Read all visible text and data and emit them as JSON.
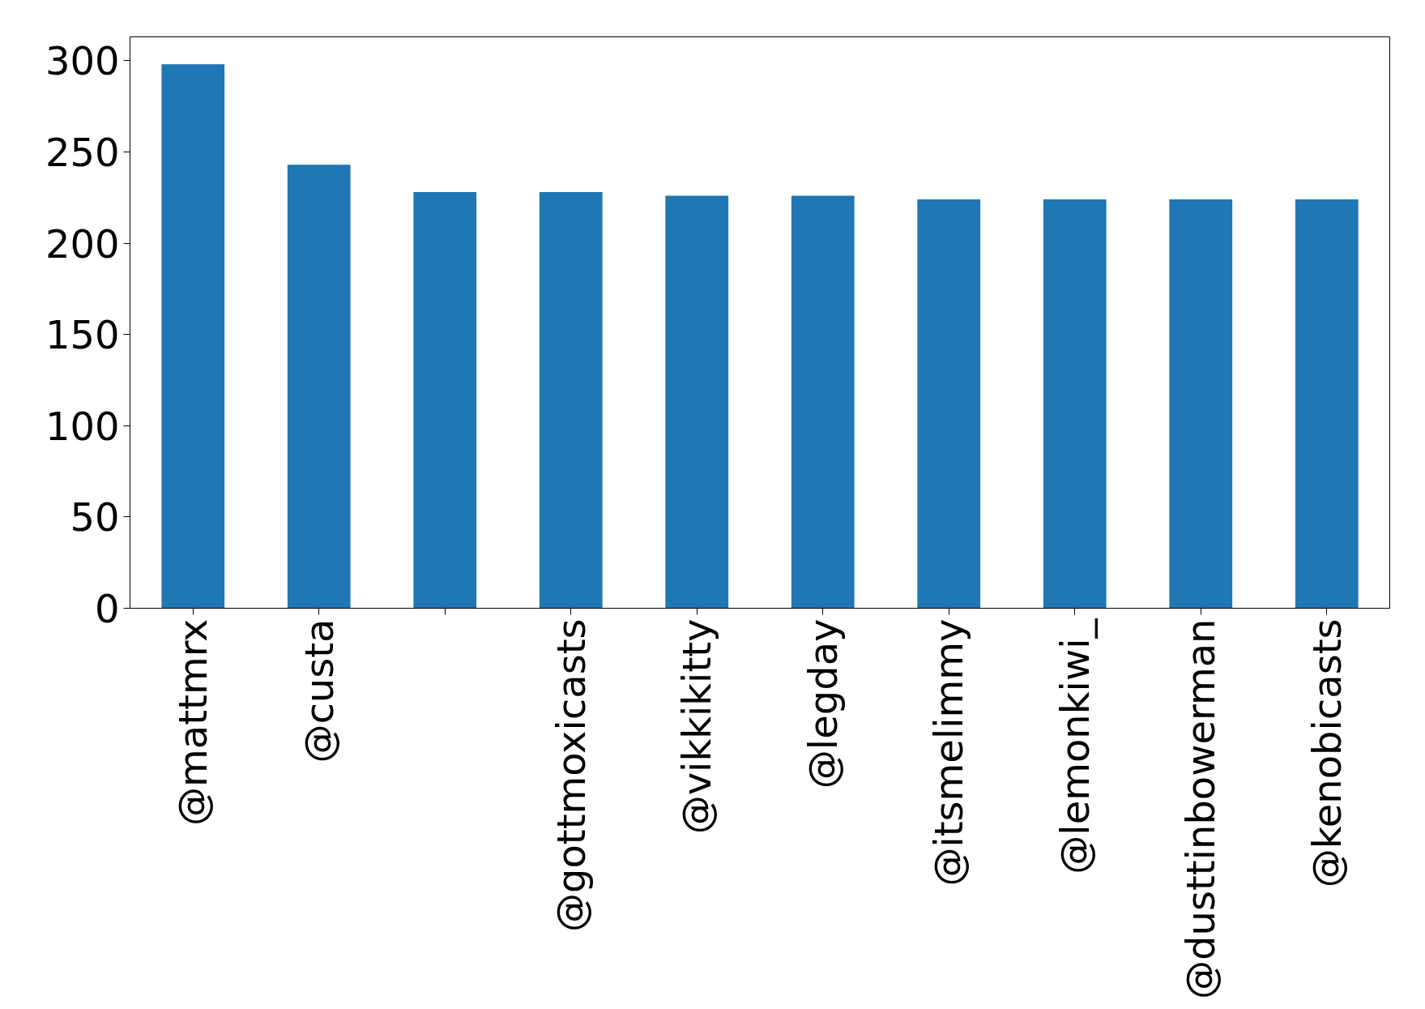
{
  "chart_data": {
    "type": "bar",
    "categories": [
      "@mattmrx",
      "@custa",
      null,
      "@gottmoxicasts",
      "@vikkikitty",
      "@legday",
      "@itsmelimmy",
      "@lemonkiwi_",
      "@dusttinbowerman",
      "@kenobicasts"
    ],
    "values": [
      298,
      243,
      228,
      228,
      226,
      226,
      224,
      224,
      224,
      224
    ],
    "color": "#1f77b4",
    "ylim": [
      0,
      313
    ],
    "yticks": [
      0,
      50,
      100,
      150,
      200,
      250,
      300
    ],
    "grid": false
  }
}
